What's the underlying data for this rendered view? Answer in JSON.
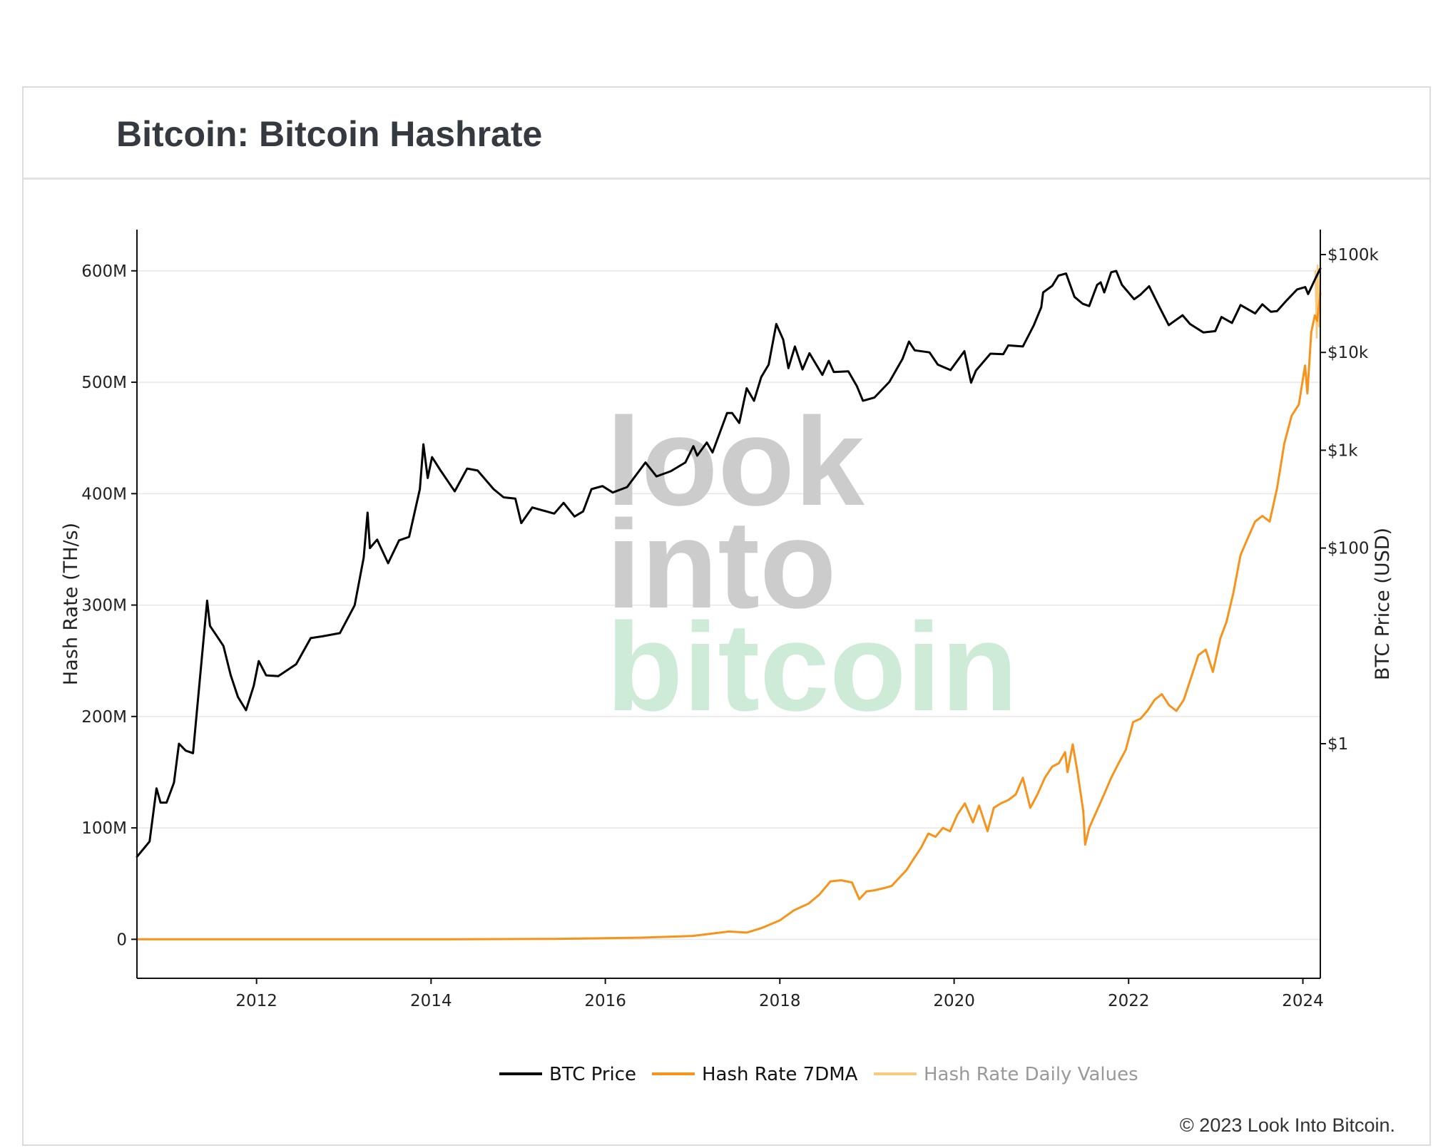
{
  "header": {
    "title": "Bitcoin: Bitcoin Hashrate"
  },
  "footer": {
    "copyright": "© 2023 Look Into Bitcoin."
  },
  "watermark": {
    "line1": "look",
    "line2": "into",
    "line3": "bitcoin",
    "color_dark": "#cccccc",
    "color_green": "#cdebd6"
  },
  "colors": {
    "price": "#000000",
    "hashrate_7dma": "#f7931a",
    "hashrate_daily": "#f9c97c",
    "grid": "#e6e6e6"
  },
  "chart_data": {
    "type": "line",
    "title": "Bitcoin: Bitcoin Hashrate",
    "xlabel": "",
    "x_range": [
      "2010-08-18",
      "2024-03-14"
    ],
    "x_ticks": [
      "2012",
      "2014",
      "2016",
      "2018",
      "2020",
      "2022",
      "2024"
    ],
    "y_left": {
      "label": "Hash Rate (TH/s)",
      "range": [
        -35000000,
        637000000
      ],
      "ticks": [
        0,
        100000000,
        200000000,
        300000000,
        400000000,
        500000000,
        600000000
      ],
      "tick_labels": [
        "0",
        "100M",
        "200M",
        "300M",
        "400M",
        "500M",
        "600M"
      ]
    },
    "y_right": {
      "label": "BTC Price (USD)",
      "scale": "log",
      "range": [
        0.004,
        180000
      ],
      "ticks": [
        1,
        100,
        1000,
        10000,
        100000
      ],
      "tick_labels": [
        "$1",
        "$100",
        "$1k",
        "$10k",
        "$100k"
      ]
    },
    "grid": true,
    "legend_position": "bottom-center",
    "series": [
      {
        "name": "BTC Price",
        "axis": "right",
        "points": [
          [
            "2010-08-18",
            0.07
          ],
          [
            "2010-10-10",
            0.1
          ],
          [
            "2010-11-08",
            0.35
          ],
          [
            "2010-11-25",
            0.25
          ],
          [
            "2010-12-20",
            0.25
          ],
          [
            "2011-01-20",
            0.4
          ],
          [
            "2011-02-10",
            1.0
          ],
          [
            "2011-03-10",
            0.85
          ],
          [
            "2011-04-10",
            0.8
          ],
          [
            "2011-05-10",
            5
          ],
          [
            "2011-06-08",
            29
          ],
          [
            "2011-06-20",
            16
          ],
          [
            "2011-07-15",
            13
          ],
          [
            "2011-08-15",
            10
          ],
          [
            "2011-09-15",
            5
          ],
          [
            "2011-10-15",
            3
          ],
          [
            "2011-11-18",
            2.2
          ],
          [
            "2011-12-20",
            3.9
          ],
          [
            "2012-01-10",
            7
          ],
          [
            "2012-02-10",
            5
          ],
          [
            "2012-04-01",
            4.9
          ],
          [
            "2012-06-15",
            6.5
          ],
          [
            "2012-08-15",
            12
          ],
          [
            "2012-10-01",
            12.5
          ],
          [
            "2012-12-15",
            13.5
          ],
          [
            "2013-02-15",
            26
          ],
          [
            "2013-03-25",
            80
          ],
          [
            "2013-04-10",
            230
          ],
          [
            "2013-04-20",
            100
          ],
          [
            "2013-05-20",
            122
          ],
          [
            "2013-07-05",
            70
          ],
          [
            "2013-08-20",
            120
          ],
          [
            "2013-10-01",
            130
          ],
          [
            "2013-11-15",
            400
          ],
          [
            "2013-11-30",
            1150
          ],
          [
            "2013-12-18",
            520
          ],
          [
            "2014-01-05",
            850
          ],
          [
            "2014-02-10",
            620
          ],
          [
            "2014-04-10",
            380
          ],
          [
            "2014-06-01",
            650
          ],
          [
            "2014-07-15",
            620
          ],
          [
            "2014-09-20",
            400
          ],
          [
            "2014-11-01",
            330
          ],
          [
            "2014-12-20",
            320
          ],
          [
            "2015-01-14",
            180
          ],
          [
            "2015-03-01",
            260
          ],
          [
            "2015-06-01",
            225
          ],
          [
            "2015-07-10",
            290
          ],
          [
            "2015-08-25",
            210
          ],
          [
            "2015-09-30",
            237
          ],
          [
            "2015-11-04",
            400
          ],
          [
            "2015-12-20",
            430
          ],
          [
            "2016-02-01",
            370
          ],
          [
            "2016-04-01",
            420
          ],
          [
            "2016-06-17",
            750
          ],
          [
            "2016-08-02",
            540
          ],
          [
            "2016-10-01",
            610
          ],
          [
            "2016-12-01",
            750
          ],
          [
            "2017-01-04",
            1100
          ],
          [
            "2017-01-20",
            880
          ],
          [
            "2017-03-01",
            1200
          ],
          [
            "2017-03-25",
            950
          ],
          [
            "2017-05-25",
            2400
          ],
          [
            "2017-06-15",
            2400
          ],
          [
            "2017-07-15",
            1900
          ],
          [
            "2017-08-15",
            4300
          ],
          [
            "2017-09-15",
            3200
          ],
          [
            "2017-10-15",
            5600
          ],
          [
            "2017-11-15",
            7500
          ],
          [
            "2017-12-17",
            19500
          ],
          [
            "2018-01-15",
            13500
          ],
          [
            "2018-02-06",
            6900
          ],
          [
            "2018-03-05",
            11500
          ],
          [
            "2018-04-06",
            6700
          ],
          [
            "2018-05-05",
            9800
          ],
          [
            "2018-06-28",
            5900
          ],
          [
            "2018-07-25",
            8200
          ],
          [
            "2018-08-15",
            6300
          ],
          [
            "2018-10-15",
            6400
          ],
          [
            "2018-11-20",
            4500
          ],
          [
            "2018-12-15",
            3200
          ],
          [
            "2019-02-01",
            3450
          ],
          [
            "2019-04-05",
            5000
          ],
          [
            "2019-05-30",
            8600
          ],
          [
            "2019-06-26",
            12900
          ],
          [
            "2019-07-20",
            10500
          ],
          [
            "2019-09-20",
            10000
          ],
          [
            "2019-10-25",
            7500
          ],
          [
            "2019-12-17",
            6600
          ],
          [
            "2020-02-13",
            10300
          ],
          [
            "2020-03-12",
            4900
          ],
          [
            "2020-04-01",
            6500
          ],
          [
            "2020-06-01",
            9700
          ],
          [
            "2020-07-25",
            9600
          ],
          [
            "2020-08-15",
            11800
          ],
          [
            "2020-10-15",
            11500
          ],
          [
            "2020-11-30",
            19000
          ],
          [
            "2020-12-31",
            29000
          ],
          [
            "2021-01-08",
            41000
          ],
          [
            "2021-02-15",
            48000
          ],
          [
            "2021-03-13",
            61000
          ],
          [
            "2021-04-14",
            64000
          ],
          [
            "2021-05-19",
            37000
          ],
          [
            "2021-06-22",
            31500
          ],
          [
            "2021-07-20",
            29800
          ],
          [
            "2021-08-22",
            49000
          ],
          [
            "2021-09-06",
            52000
          ],
          [
            "2021-09-21",
            41000
          ],
          [
            "2021-10-20",
            66000
          ],
          [
            "2021-11-10",
            68000
          ],
          [
            "2021-12-04",
            49000
          ],
          [
            "2022-01-24",
            35000
          ],
          [
            "2022-02-20",
            39000
          ],
          [
            "2022-03-28",
            47500
          ],
          [
            "2022-05-12",
            28500
          ],
          [
            "2022-06-18",
            19000
          ],
          [
            "2022-08-15",
            24000
          ],
          [
            "2022-09-15",
            19500
          ],
          [
            "2022-11-10",
            16000
          ],
          [
            "2022-12-30",
            16500
          ],
          [
            "2023-01-25",
            23000
          ],
          [
            "2023-03-10",
            20000
          ],
          [
            "2023-04-15",
            30500
          ],
          [
            "2023-06-15",
            25000
          ],
          [
            "2023-07-15",
            31000
          ],
          [
            "2023-08-20",
            26000
          ],
          [
            "2023-09-15",
            26500
          ],
          [
            "2023-10-25",
            34000
          ],
          [
            "2023-12-08",
            44000
          ],
          [
            "2024-01-11",
            46500
          ],
          [
            "2024-01-23",
            39500
          ],
          [
            "2024-02-15",
            52000
          ],
          [
            "2024-03-01",
            62000
          ],
          [
            "2024-03-14",
            72000
          ]
        ]
      },
      {
        "name": "Hash Rate 7DMA",
        "axis": "left",
        "points": [
          [
            "2010-08-18",
            0
          ],
          [
            "2014-01-01",
            10000
          ],
          [
            "2015-06-01",
            400000
          ],
          [
            "2016-06-01",
            1500000
          ],
          [
            "2017-01-01",
            3000000
          ],
          [
            "2017-06-01",
            7000000
          ],
          [
            "2017-08-15",
            6000000
          ],
          [
            "2017-10-15",
            10000000
          ],
          [
            "2018-01-01",
            17000000
          ],
          [
            "2018-03-01",
            26000000
          ],
          [
            "2018-05-01",
            32000000
          ],
          [
            "2018-06-15",
            40000000
          ],
          [
            "2018-08-01",
            52000000
          ],
          [
            "2018-09-15",
            53000000
          ],
          [
            "2018-10-30",
            51000000
          ],
          [
            "2018-11-30",
            36000000
          ],
          [
            "2018-12-30",
            43000000
          ],
          [
            "2019-02-01",
            44000000
          ],
          [
            "2019-03-15",
            46000000
          ],
          [
            "2019-04-15",
            48000000
          ],
          [
            "2019-05-15",
            55000000
          ],
          [
            "2019-06-15",
            62000000
          ],
          [
            "2019-07-15",
            72000000
          ],
          [
            "2019-08-15",
            82000000
          ],
          [
            "2019-09-15",
            95000000
          ],
          [
            "2019-10-15",
            92000000
          ],
          [
            "2019-11-15",
            100000000
          ],
          [
            "2019-12-15",
            97000000
          ],
          [
            "2020-01-15",
            112000000
          ],
          [
            "2020-02-15",
            122000000
          ],
          [
            "2020-03-20",
            105000000
          ],
          [
            "2020-04-15",
            120000000
          ],
          [
            "2020-05-20",
            97000000
          ],
          [
            "2020-06-15",
            118000000
          ],
          [
            "2020-07-15",
            122000000
          ],
          [
            "2020-08-15",
            125000000
          ],
          [
            "2020-09-15",
            130000000
          ],
          [
            "2020-10-15",
            145000000
          ],
          [
            "2020-11-15",
            118000000
          ],
          [
            "2020-12-15",
            130000000
          ],
          [
            "2021-01-15",
            145000000
          ],
          [
            "2021-02-15",
            155000000
          ],
          [
            "2021-03-15",
            158000000
          ],
          [
            "2021-04-10",
            168000000
          ],
          [
            "2021-04-20",
            150000000
          ],
          [
            "2021-05-12",
            175000000
          ],
          [
            "2021-06-01",
            150000000
          ],
          [
            "2021-06-25",
            115000000
          ],
          [
            "2021-07-03",
            85000000
          ],
          [
            "2021-07-20",
            100000000
          ],
          [
            "2021-08-20",
            115000000
          ],
          [
            "2021-09-20",
            130000000
          ],
          [
            "2021-10-20",
            145000000
          ],
          [
            "2021-11-20",
            158000000
          ],
          [
            "2021-12-20",
            170000000
          ],
          [
            "2022-01-20",
            195000000
          ],
          [
            "2022-02-20",
            198000000
          ],
          [
            "2022-03-20",
            205000000
          ],
          [
            "2022-04-20",
            215000000
          ],
          [
            "2022-05-20",
            220000000
          ],
          [
            "2022-06-20",
            210000000
          ],
          [
            "2022-07-20",
            205000000
          ],
          [
            "2022-08-20",
            215000000
          ],
          [
            "2022-09-20",
            235000000
          ],
          [
            "2022-10-20",
            255000000
          ],
          [
            "2022-11-20",
            260000000
          ],
          [
            "2022-12-20",
            240000000
          ],
          [
            "2023-01-20",
            270000000
          ],
          [
            "2023-02-15",
            285000000
          ],
          [
            "2023-03-15",
            310000000
          ],
          [
            "2023-04-15",
            345000000
          ],
          [
            "2023-05-15",
            360000000
          ],
          [
            "2023-06-15",
            375000000
          ],
          [
            "2023-07-15",
            380000000
          ],
          [
            "2023-08-15",
            375000000
          ],
          [
            "2023-09-15",
            405000000
          ],
          [
            "2023-10-15",
            445000000
          ],
          [
            "2023-11-15",
            470000000
          ],
          [
            "2023-12-15",
            480000000
          ],
          [
            "2024-01-10",
            515000000
          ],
          [
            "2024-01-20",
            490000000
          ],
          [
            "2024-02-05",
            545000000
          ],
          [
            "2024-02-20",
            560000000
          ],
          [
            "2024-03-01",
            555000000
          ],
          [
            "2024-03-14",
            580000000
          ]
        ]
      },
      {
        "name": "Hash Rate Daily Values",
        "axis": "left",
        "legend_dimmed": true,
        "points": [
          [
            "2024-02-22",
            600000000
          ],
          [
            "2024-02-28",
            540000000
          ],
          [
            "2024-03-03",
            605000000
          ],
          [
            "2024-03-08",
            550000000
          ],
          [
            "2024-03-14",
            598000000
          ]
        ]
      }
    ]
  }
}
